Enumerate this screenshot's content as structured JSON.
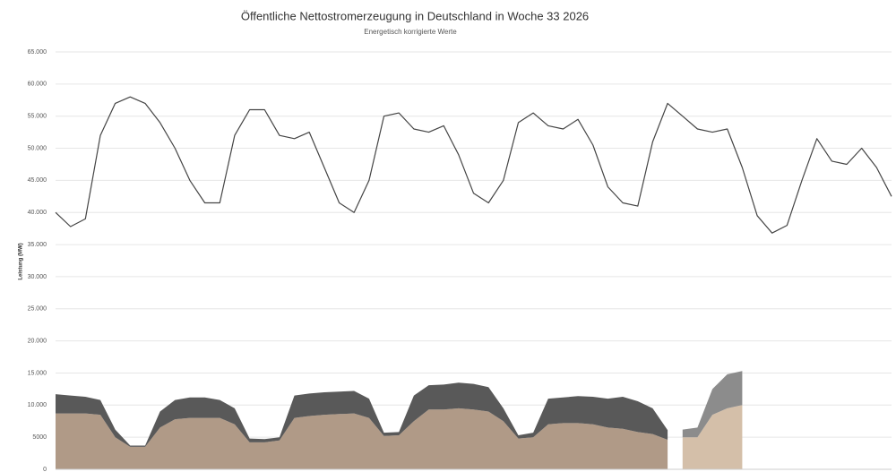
{
  "chart_data": {
    "type": "line",
    "title": "Öffentliche Nettostromerzeugung in Deutschland in Woche 33 2026",
    "subtitle": "Energetisch korrigierte Werte",
    "y_label": "Leistung (MW)",
    "categories": [
      null,
      null,
      null,
      null,
      null,
      null,
      null,
      null,
      null,
      null,
      null,
      null,
      null,
      null,
      null,
      null,
      null,
      null,
      null,
      null,
      null,
      null,
      null,
      null,
      null,
      null,
      null,
      null,
      null,
      null,
      null,
      null,
      null,
      null,
      null,
      null,
      null,
      null,
      null,
      null,
      null,
      null,
      null,
      null,
      null,
      null,
      null,
      null,
      null,
      null,
      null,
      null,
      null,
      null,
      null,
      null,
      null
    ],
    "series": [
      {
        "type": "line",
        "color": "#444444",
        "values": [
          40000,
          37800,
          39000,
          52000,
          57000,
          58000,
          57000,
          54000,
          50000,
          45000,
          41500,
          41500,
          52000,
          56000,
          56000,
          52000,
          51500,
          52500,
          47000,
          41500,
          40000,
          45000,
          55000,
          55500,
          53000,
          52500,
          53500,
          49000,
          43000,
          41500,
          45000,
          54000,
          55500,
          53500,
          53000,
          54500,
          50500,
          44000,
          41500,
          41000,
          51000,
          57000,
          55000,
          53000,
          52500,
          53000,
          47000,
          39500,
          36800,
          38000,
          45000,
          51500,
          48000,
          47500,
          50000,
          47000,
          42500
        ]
      },
      {
        "type": "area",
        "color": "#b09a87",
        "values": [
          8700,
          8700,
          8700,
          8500,
          5000,
          3500,
          3500,
          6500,
          7800,
          8000,
          8000,
          8000,
          7000,
          4200,
          4200,
          4500,
          8000,
          8300,
          8500,
          8600,
          8700,
          8000,
          5200,
          5300,
          7500,
          9300,
          9300,
          9500,
          9300,
          9000,
          7500,
          4800,
          5000,
          7000,
          7200,
          7200,
          7000,
          6500,
          6300,
          5800,
          5500,
          4600,
          null,
          null,
          null,
          null,
          null,
          null,
          null,
          null,
          null,
          null,
          null,
          null,
          null,
          null,
          null
        ]
      },
      {
        "type": "area",
        "color": "#595959",
        "values": [
          3000,
          2800,
          2600,
          2300,
          1200,
          200,
          200,
          2500,
          3000,
          3200,
          3200,
          2800,
          2500,
          600,
          500,
          500,
          3500,
          3500,
          3500,
          3500,
          3500,
          3000,
          500,
          500,
          4000,
          3800,
          3900,
          4000,
          4000,
          3800,
          2000,
          500,
          700,
          4000,
          4000,
          4200,
          4300,
          4500,
          5000,
          4800,
          4000,
          1500,
          null,
          null,
          null,
          null,
          null,
          null,
          null,
          null,
          null,
          null,
          null,
          null,
          null,
          null,
          null
        ]
      },
      {
        "type": "area",
        "color": "#d4bfa9",
        "values": [
          null,
          null,
          null,
          null,
          null,
          null,
          null,
          null,
          null,
          null,
          null,
          null,
          null,
          null,
          null,
          null,
          null,
          null,
          null,
          null,
          null,
          null,
          null,
          null,
          null,
          null,
          null,
          null,
          null,
          null,
          null,
          null,
          null,
          null,
          null,
          null,
          null,
          null,
          null,
          null,
          null,
          null,
          5000,
          5000,
          8500,
          9500,
          10000,
          null,
          null,
          null,
          null,
          null,
          null,
          null,
          null,
          null,
          null
        ]
      },
      {
        "type": "area",
        "color": "#8c8c8c",
        "values": [
          null,
          null,
          null,
          null,
          null,
          null,
          null,
          null,
          null,
          null,
          null,
          null,
          null,
          null,
          null,
          null,
          null,
          null,
          null,
          null,
          null,
          null,
          null,
          null,
          null,
          null,
          null,
          null,
          null,
          null,
          null,
          null,
          null,
          null,
          null,
          null,
          null,
          null,
          null,
          null,
          null,
          null,
          1200,
          1500,
          4000,
          5300,
          5300,
          null,
          null,
          null,
          null,
          null,
          null,
          null,
          null,
          null,
          null
        ]
      }
    ],
    "ylim": [
      0,
      65000
    ],
    "yticks": [
      0,
      5000,
      {
        "value": 10000,
        "label": "10.000"
      },
      {
        "value": 15000,
        "label": "15.000"
      },
      {
        "value": 20000,
        "label": "20.000"
      },
      {
        "value": 25000,
        "label": "25.000"
      },
      {
        "value": 30000,
        "label": "30.000"
      },
      {
        "value": 35000,
        "label": "35.000"
      },
      {
        "value": 40000,
        "label": "40.000"
      },
      {
        "value": 45000,
        "label": "45.000"
      },
      {
        "value": 50000,
        "label": "50.000"
      },
      {
        "value": 55000,
        "label": "55.000"
      },
      {
        "value": 60000,
        "label": "60.000"
      },
      {
        "value": 65000,
        "label": "65.000"
      }
    ],
    "grid": true
  }
}
